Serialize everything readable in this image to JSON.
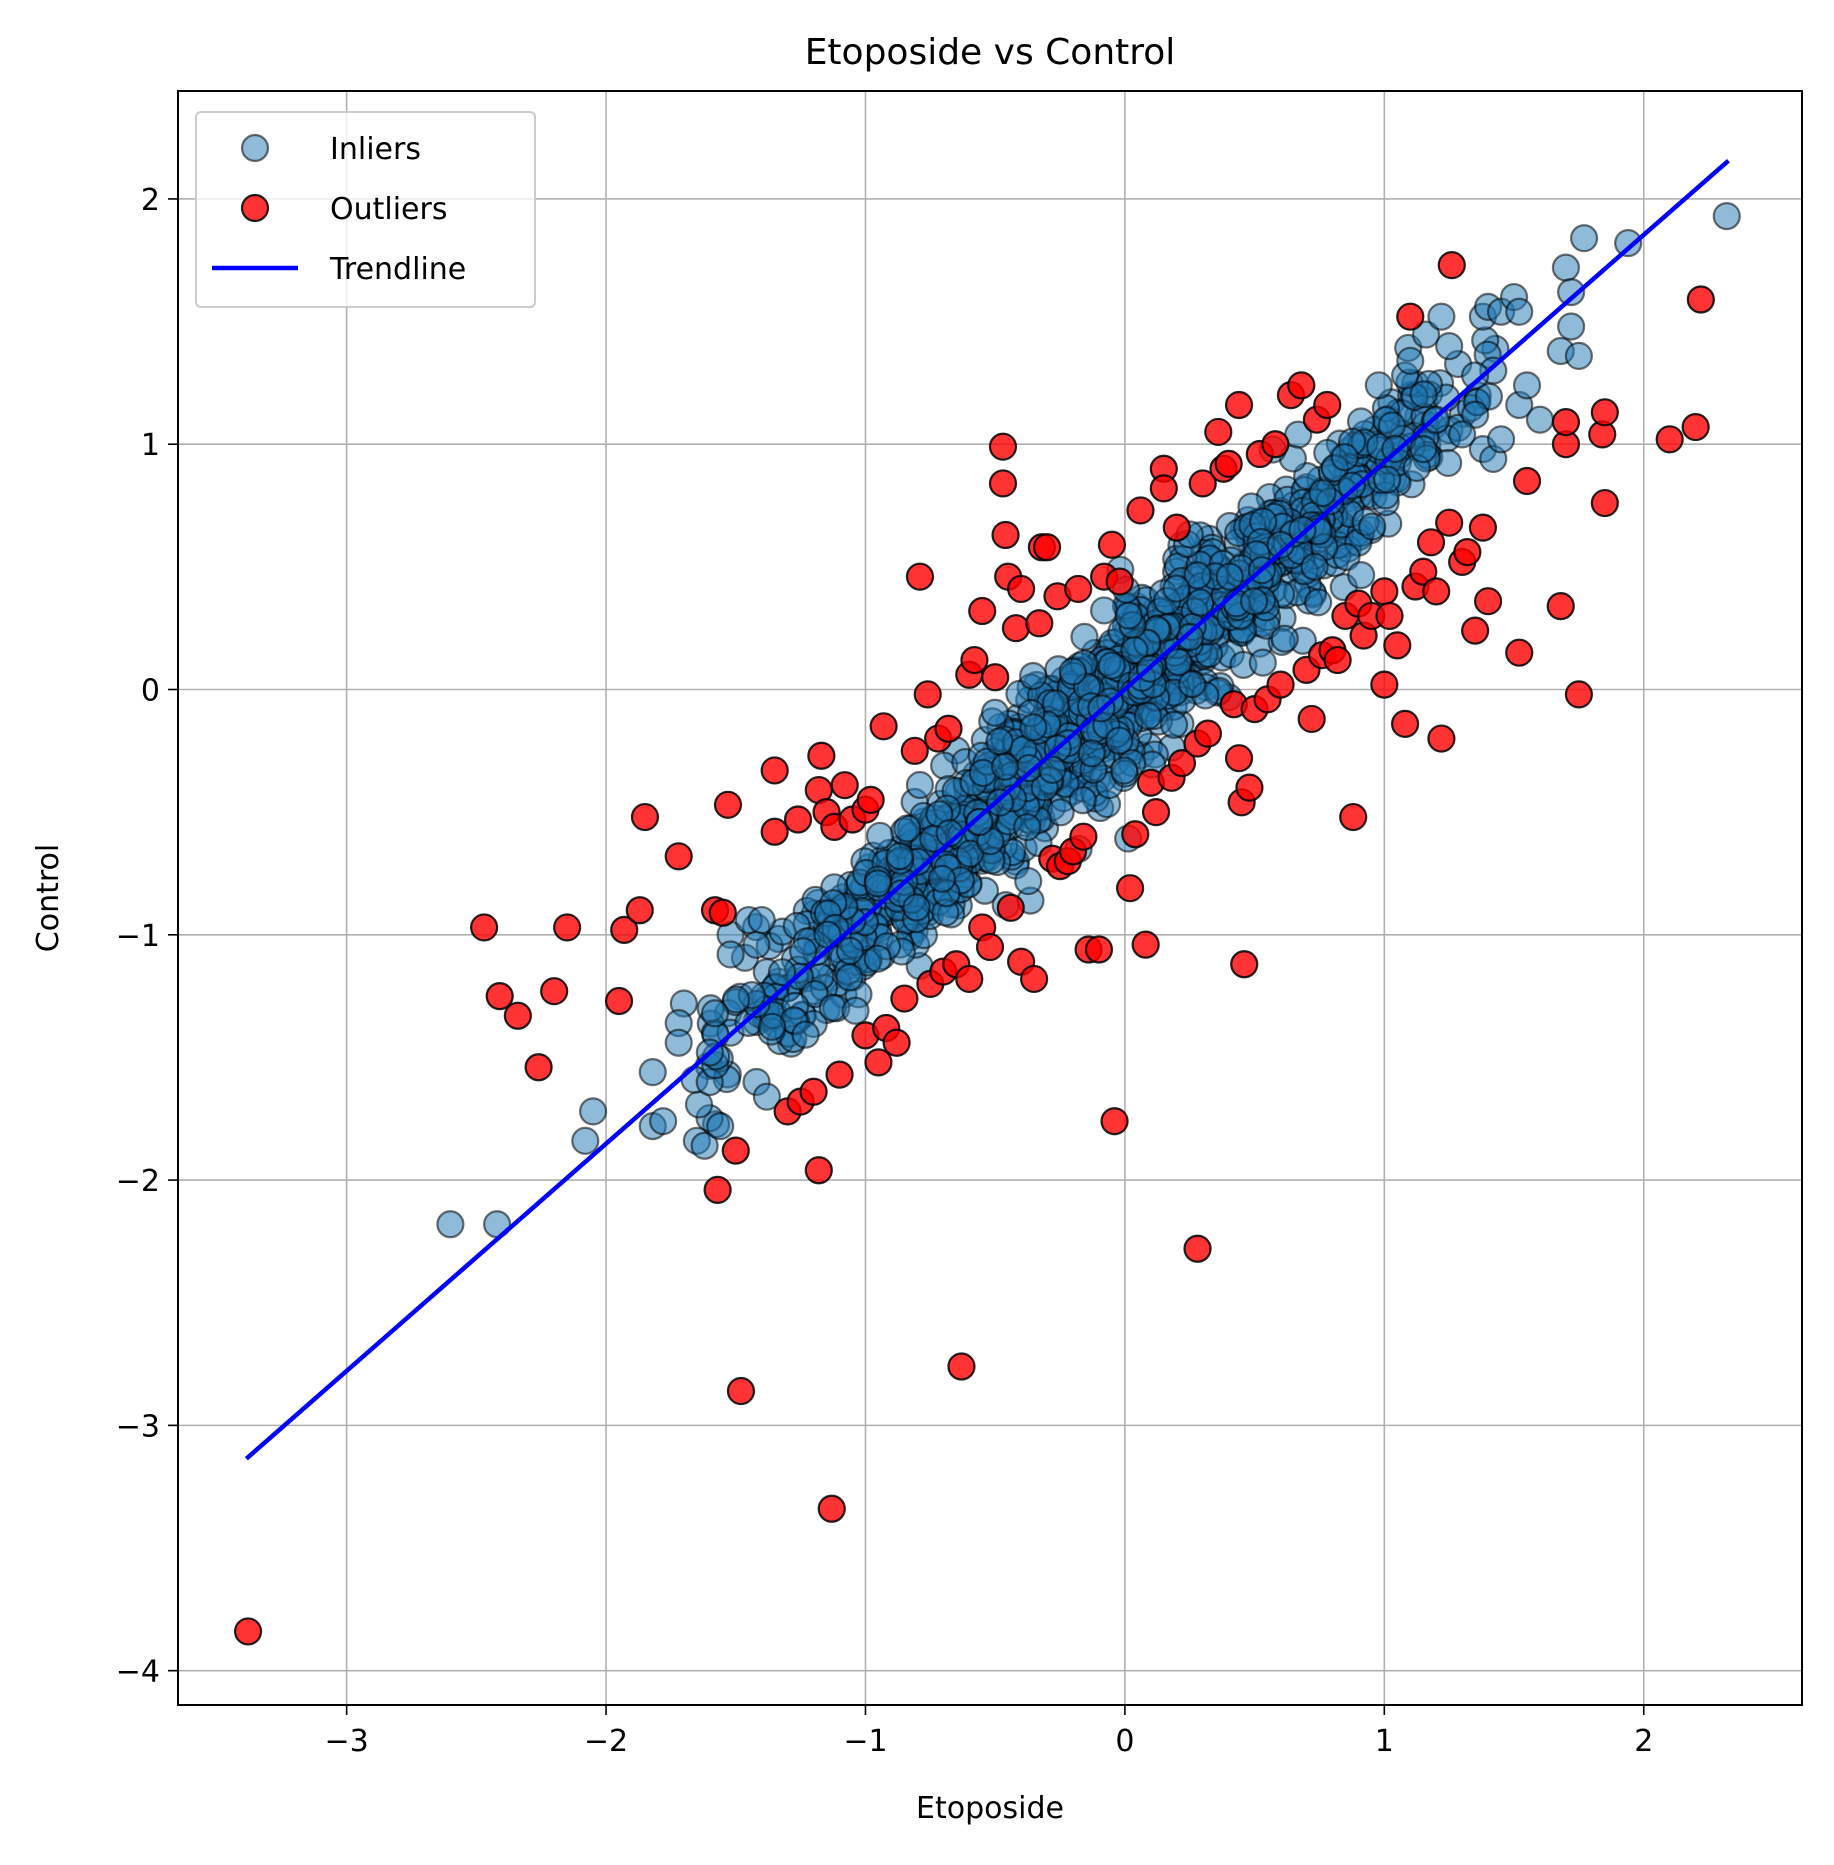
{
  "chart_data": {
    "type": "scatter",
    "title": "Etoposide vs Control",
    "xlabel": "Etoposide",
    "ylabel": "Control",
    "xlim": [
      -3.65,
      2.61
    ],
    "ylim": [
      -4.14,
      2.44
    ],
    "xticks": [
      -3,
      -2,
      -1,
      0,
      1,
      2
    ],
    "yticks": [
      -4,
      -3,
      -2,
      -1,
      0,
      1,
      2
    ],
    "xtick_labels": [
      "−3",
      "−2",
      "−1",
      "0",
      "1",
      "2"
    ],
    "ytick_labels": [
      "−4",
      "−3",
      "−2",
      "−1",
      "0",
      "1",
      "2"
    ],
    "grid": true,
    "legend_position": "top-left",
    "colors": {
      "inliers": "#1f77b4",
      "outliers": "#ff0000",
      "trendline": "#0000ff",
      "edge": "#000000"
    },
    "legend": [
      {
        "key": "inliers",
        "label": "Inliers",
        "kind": "marker"
      },
      {
        "key": "outliers",
        "label": "Outliers",
        "kind": "marker"
      },
      {
        "key": "trendline",
        "label": "Trendline",
        "kind": "line"
      }
    ],
    "series": [
      {
        "name": "Inliers",
        "kind": "scatter",
        "cloud": {
          "x_range": [
            -1.7,
            1.5
          ],
          "slope": 0.93,
          "intercept": 0.0,
          "spread": 0.28,
          "count": 1400
        },
        "points": [
          [
            -2.6,
            -2.18
          ],
          [
            -2.42,
            -2.18
          ],
          [
            -2.08,
            -1.84
          ],
          [
            -2.05,
            -1.72
          ],
          [
            -1.82,
            -1.56
          ],
          [
            -1.82,
            -1.78
          ],
          [
            -1.78,
            -1.76
          ],
          [
            -1.7,
            -1.28
          ],
          [
            -1.72,
            -1.36
          ],
          [
            -1.72,
            -1.44
          ],
          [
            -1.65,
            -1.84
          ],
          [
            -1.62,
            -1.86
          ],
          [
            -1.58,
            -1.32
          ],
          [
            -1.56,
            -1.78
          ],
          [
            -1.6,
            -1.48
          ],
          [
            -1.52,
            -1.0
          ],
          [
            -1.52,
            -1.08
          ],
          [
            -1.45,
            -0.94
          ],
          [
            -1.4,
            -0.94
          ],
          [
            -1.42,
            -1.6
          ],
          [
            -1.38,
            -1.66
          ],
          [
            1.08,
            1.28
          ],
          [
            1.1,
            1.34
          ],
          [
            1.22,
            1.52
          ],
          [
            1.25,
            1.4
          ],
          [
            1.38,
            1.52
          ],
          [
            1.4,
            1.56
          ],
          [
            1.42,
            1.3
          ],
          [
            1.45,
            1.54
          ],
          [
            1.5,
            1.6
          ],
          [
            1.52,
            1.16
          ],
          [
            1.55,
            1.24
          ],
          [
            1.52,
            1.54
          ],
          [
            1.6,
            1.1
          ],
          [
            1.68,
            1.38
          ],
          [
            1.7,
            1.72
          ],
          [
            1.72,
            1.62
          ],
          [
            1.72,
            1.48
          ],
          [
            1.75,
            1.36
          ],
          [
            1.77,
            1.84
          ],
          [
            1.94,
            1.82
          ],
          [
            2.32,
            1.93
          ],
          [
            1.35,
            1.12
          ],
          [
            1.38,
            0.98
          ],
          [
            1.42,
            0.94
          ],
          [
            1.3,
            1.04
          ],
          [
            1.35,
            1.28
          ],
          [
            1.45,
            1.02
          ],
          [
            1.2,
            1.1
          ],
          [
            1.15,
            0.98
          ]
        ]
      },
      {
        "name": "Outliers",
        "kind": "scatter",
        "points": [
          [
            -3.38,
            -3.84
          ],
          [
            -2.47,
            -0.97
          ],
          [
            -2.41,
            -1.25
          ],
          [
            -2.34,
            -1.33
          ],
          [
            -2.26,
            -1.54
          ],
          [
            -2.2,
            -1.23
          ],
          [
            -2.15,
            -0.97
          ],
          [
            -1.95,
            -1.27
          ],
          [
            -1.93,
            -0.98
          ],
          [
            -1.87,
            -0.9
          ],
          [
            -1.85,
            -0.52
          ],
          [
            -1.72,
            -0.68
          ],
          [
            -1.58,
            -0.9
          ],
          [
            -1.55,
            -0.91
          ],
          [
            -1.53,
            -0.47
          ],
          [
            -1.5,
            -1.88
          ],
          [
            -1.48,
            -2.86
          ],
          [
            -1.57,
            -2.04
          ],
          [
            -1.35,
            -0.33
          ],
          [
            -1.35,
            -0.58
          ],
          [
            -1.3,
            -1.72
          ],
          [
            -1.26,
            -0.53
          ],
          [
            -1.25,
            -1.68
          ],
          [
            -1.2,
            -1.64
          ],
          [
            -1.18,
            -1.96
          ],
          [
            -1.18,
            -0.41
          ],
          [
            -1.17,
            -0.27
          ],
          [
            -1.13,
            -3.34
          ],
          [
            -1.15,
            -0.5
          ],
          [
            -1.12,
            -0.56
          ],
          [
            -1.1,
            -1.57
          ],
          [
            -1.08,
            -0.39
          ],
          [
            -1.05,
            -0.53
          ],
          [
            -1.0,
            -1.41
          ],
          [
            -1.0,
            -0.49
          ],
          [
            -0.98,
            -0.45
          ],
          [
            -0.95,
            -1.52
          ],
          [
            -0.93,
            -0.15
          ],
          [
            -0.92,
            -1.38
          ],
          [
            -0.88,
            -1.44
          ],
          [
            -0.85,
            -1.26
          ],
          [
            -0.81,
            -0.25
          ],
          [
            -0.79,
            0.46
          ],
          [
            -0.76,
            -0.02
          ],
          [
            -0.75,
            -1.2
          ],
          [
            -0.72,
            -0.2
          ],
          [
            -0.7,
            -1.15
          ],
          [
            -0.68,
            -0.16
          ],
          [
            -0.65,
            -1.12
          ],
          [
            -0.63,
            -2.76
          ],
          [
            -0.6,
            -1.18
          ],
          [
            -0.6,
            0.06
          ],
          [
            -0.58,
            0.12
          ],
          [
            -0.55,
            0.32
          ],
          [
            -0.55,
            -0.97
          ],
          [
            -0.52,
            -1.05
          ],
          [
            -0.5,
            0.05
          ],
          [
            -0.47,
            0.99
          ],
          [
            -0.47,
            0.84
          ],
          [
            -0.46,
            0.63
          ],
          [
            -0.45,
            0.46
          ],
          [
            -0.44,
            -0.89
          ],
          [
            -0.42,
            0.25
          ],
          [
            -0.4,
            -1.11
          ],
          [
            -0.4,
            0.41
          ],
          [
            -0.35,
            -1.18
          ],
          [
            -0.33,
            0.27
          ],
          [
            -0.32,
            0.58
          ],
          [
            -0.3,
            0.58
          ],
          [
            -0.28,
            -0.69
          ],
          [
            -0.26,
            0.38
          ],
          [
            -0.25,
            -0.72
          ],
          [
            -0.22,
            -0.7
          ],
          [
            -0.2,
            -0.66
          ],
          [
            -0.18,
            0.41
          ],
          [
            -0.16,
            -0.6
          ],
          [
            -0.14,
            -1.06
          ],
          [
            -0.1,
            -1.06
          ],
          [
            -0.08,
            0.46
          ],
          [
            -0.05,
            0.59
          ],
          [
            -0.04,
            -1.76
          ],
          [
            -0.02,
            0.44
          ],
          [
            0.02,
            -0.81
          ],
          [
            0.04,
            -0.59
          ],
          [
            0.06,
            0.73
          ],
          [
            0.08,
            -1.04
          ],
          [
            0.1,
            -0.38
          ],
          [
            0.12,
            -0.5
          ],
          [
            0.15,
            0.9
          ],
          [
            0.15,
            0.82
          ],
          [
            0.18,
            -0.36
          ],
          [
            0.2,
            0.66
          ],
          [
            0.22,
            -0.3
          ],
          [
            0.28,
            -2.28
          ],
          [
            0.28,
            -0.22
          ],
          [
            0.3,
            0.84
          ],
          [
            0.32,
            -0.18
          ],
          [
            0.36,
            1.05
          ],
          [
            0.38,
            0.9
          ],
          [
            0.4,
            0.92
          ],
          [
            0.42,
            -0.06
          ],
          [
            0.44,
            1.16
          ],
          [
            0.44,
            -0.28
          ],
          [
            0.45,
            -0.46
          ],
          [
            0.46,
            -1.12
          ],
          [
            0.48,
            -0.4
          ],
          [
            0.5,
            -0.08
          ],
          [
            0.52,
            0.96
          ],
          [
            0.55,
            -0.04
          ],
          [
            0.58,
            1.0
          ],
          [
            0.6,
            0.02
          ],
          [
            0.64,
            1.2
          ],
          [
            0.68,
            1.24
          ],
          [
            0.7,
            0.08
          ],
          [
            0.72,
            -0.12
          ],
          [
            0.74,
            1.1
          ],
          [
            0.76,
            0.14
          ],
          [
            0.78,
            1.16
          ],
          [
            0.8,
            0.16
          ],
          [
            0.82,
            0.12
          ],
          [
            0.85,
            0.3
          ],
          [
            0.88,
            -0.52
          ],
          [
            0.9,
            0.35
          ],
          [
            0.92,
            0.22
          ],
          [
            0.95,
            0.3
          ],
          [
            1.0,
            0.4
          ],
          [
            1.0,
            0.02
          ],
          [
            1.02,
            0.3
          ],
          [
            1.05,
            0.18
          ],
          [
            1.08,
            -0.14
          ],
          [
            1.1,
            1.52
          ],
          [
            1.12,
            0.42
          ],
          [
            1.15,
            0.48
          ],
          [
            1.18,
            0.6
          ],
          [
            1.2,
            0.4
          ],
          [
            1.22,
            -0.2
          ],
          [
            1.25,
            0.68
          ],
          [
            1.26,
            1.73
          ],
          [
            1.3,
            0.52
          ],
          [
            1.32,
            0.56
          ],
          [
            1.35,
            0.24
          ],
          [
            1.38,
            0.66
          ],
          [
            1.4,
            0.36
          ],
          [
            1.52,
            0.15
          ],
          [
            1.55,
            0.85
          ],
          [
            1.68,
            0.34
          ],
          [
            1.7,
            1.0
          ],
          [
            1.7,
            1.09
          ],
          [
            1.75,
            -0.02
          ],
          [
            1.84,
            1.04
          ],
          [
            1.85,
            1.13
          ],
          [
            1.85,
            0.76
          ],
          [
            2.1,
            1.02
          ],
          [
            2.2,
            1.07
          ],
          [
            2.22,
            1.59
          ]
        ]
      },
      {
        "name": "Trendline",
        "kind": "line",
        "x": [
          -3.38,
          2.32
        ],
        "y": [
          -3.13,
          2.15
        ]
      }
    ]
  }
}
